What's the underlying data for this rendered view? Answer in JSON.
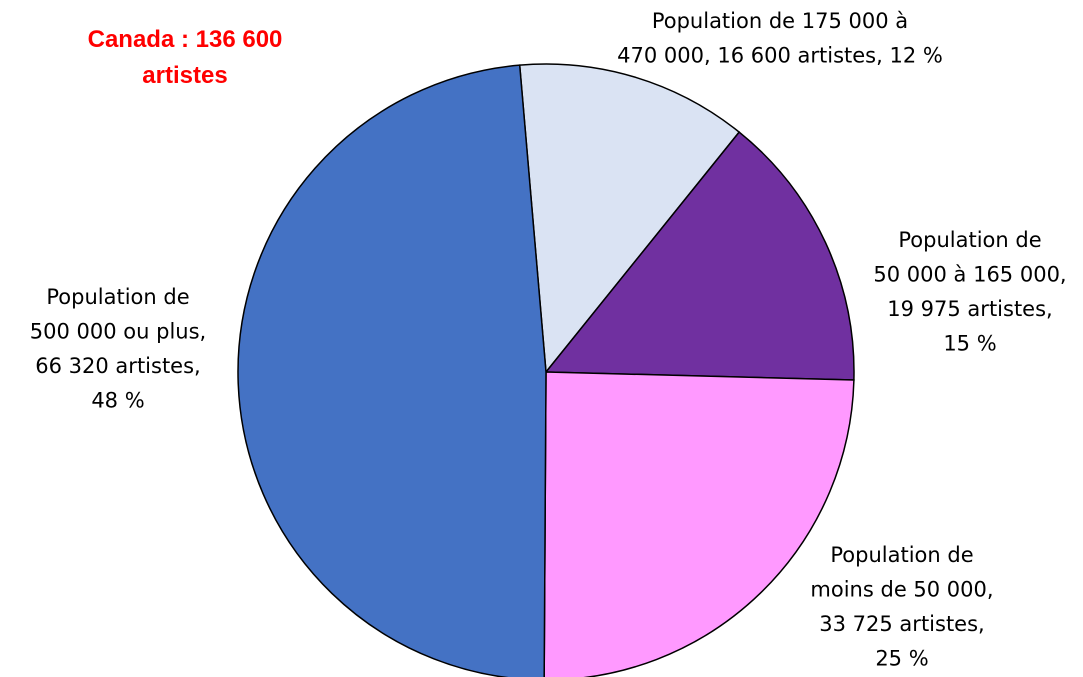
{
  "chart_data": {
    "type": "pie",
    "title": "Canada : 136 600 artistes",
    "values": [
      16600,
      19975,
      33725,
      66320
    ],
    "colors": [
      "#dae3f3",
      "#7030a0",
      "#ff99ff",
      "#4472c4"
    ],
    "labels": [
      [
        "Population de 175 000 à",
        "470 000, 16 600 artistes, 12 %"
      ],
      [
        "Population de",
        "50 000 à 165 000,",
        "19 975 artistes,",
        "15 %"
      ],
      [
        "Population de",
        "moins de 50 000,",
        "33 725 artistes,",
        "25 %"
      ],
      [
        "Population de",
        "500 000 ou plus,",
        "66 320 artistes,",
        "48 %"
      ]
    ]
  }
}
